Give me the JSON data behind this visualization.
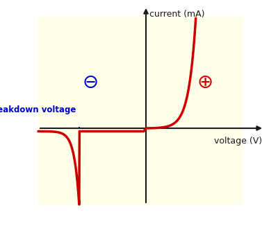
{
  "background_color": "#fffee8",
  "outer_background": "#ffffff",
  "curve_color": "#cc0000",
  "breakdown_line_color": "#0000cc",
  "axis_color": "#1a1a1a",
  "minus_symbol_color": "#0000cc",
  "plus_symbol_color": "#cc0000",
  "xlabel": "voltage (V)",
  "ylabel": "current (mA)",
  "breakdown_label": "breakdown voltage",
  "figsize": [
    4.0,
    3.39
  ],
  "dpi": 100
}
